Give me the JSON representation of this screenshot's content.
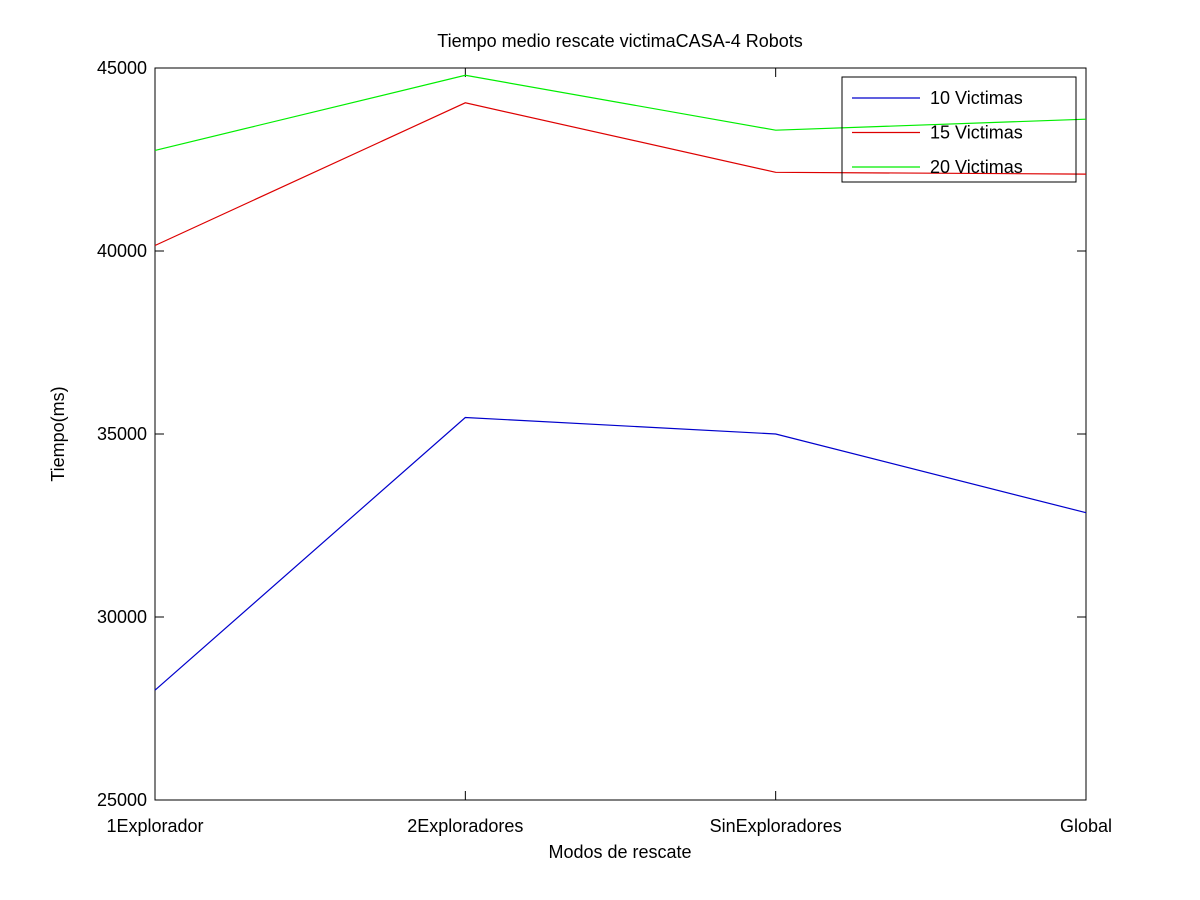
{
  "chart_data": {
    "type": "line",
    "title": "Tiempo medio rescate victimaCASA-4 Robots",
    "xlabel": "Modos de rescate",
    "ylabel": "Tiempo(ms)",
    "categories": [
      "1Explorador",
      "2Exploradores",
      "SinExploradores",
      "Global"
    ],
    "ylim": [
      25000,
      45000
    ],
    "yticks": [
      25000,
      30000,
      35000,
      40000,
      45000
    ],
    "grid": false,
    "legend_position": "top-right",
    "series": [
      {
        "name": "10 Victimas",
        "color": "#0000cc",
        "values": [
          28000,
          35450,
          35000,
          32850
        ]
      },
      {
        "name": "15 Victimas",
        "color": "#dd0000",
        "values": [
          40150,
          44050,
          42150,
          42100
        ]
      },
      {
        "name": "20 Victimas",
        "color": "#00ee00",
        "values": [
          42750,
          44800,
          43300,
          43600
        ]
      }
    ]
  }
}
